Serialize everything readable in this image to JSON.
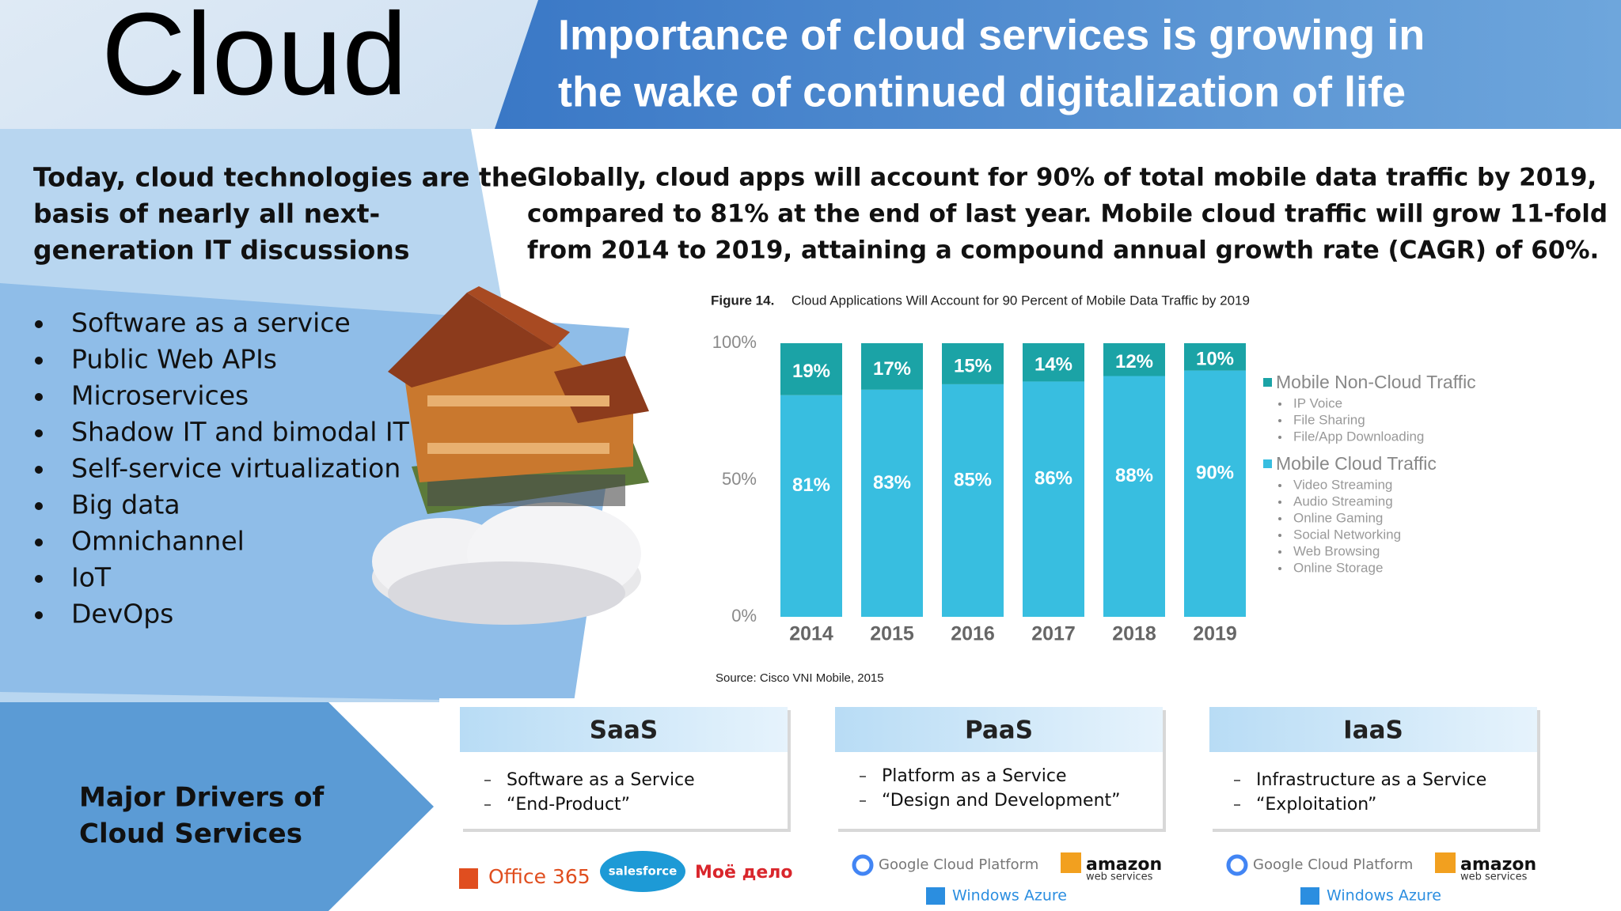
{
  "header": {
    "title": "Cloud",
    "headline": [
      "Importance of cloud services is growing in",
      "the wake of continued digitalization of life"
    ]
  },
  "intro": [
    "Today, cloud technologies are the",
    "basis of nearly all next-",
    "generation IT discussions"
  ],
  "drivers_list": [
    "Software as a service",
    "Public Web APIs",
    "Microservices",
    "Shadow IT and bimodal IT",
    "Self-service virtualization",
    "Big data",
    "Omnichannel",
    "IoT",
    "DevOps"
  ],
  "drivers_title": [
    "Major Drivers of",
    "Cloud Services"
  ],
  "summary": [
    "Globally, cloud apps will account for 90% of total mobile data traffic by 2019,",
    "compared to 81% at the end of last year. Mobile cloud traffic will grow 11-fold",
    "from 2014 to 2019, attaining a compound annual growth rate (CAGR) of 60%."
  ],
  "figure": {
    "label": "Figure 14.",
    "caption": "Cloud Applications Will Account for 90 Percent of Mobile Data Traffic by 2019",
    "source": "Source: Cisco VNI Mobile, 2015"
  },
  "chart_data": {
    "type": "bar",
    "stacked": true,
    "categories": [
      "2014",
      "2015",
      "2016",
      "2017",
      "2018",
      "2019"
    ],
    "series": [
      {
        "name": "Mobile Non-Cloud Traffic",
        "color": "#1ba3a6",
        "values": [
          19,
          17,
          15,
          14,
          12,
          10
        ],
        "value_labels": [
          "19%",
          "17%",
          "15%",
          "14%",
          "12%",
          "10%"
        ],
        "items": [
          "IP Voice",
          "File Sharing",
          "File/App Downloading"
        ]
      },
      {
        "name": "Mobile Cloud Traffic",
        "color": "#38bee0",
        "values": [
          81,
          83,
          85,
          86,
          88,
          90
        ],
        "value_labels": [
          "81%",
          "83%",
          "85%",
          "86%",
          "88%",
          "90%"
        ],
        "items": [
          "Video Streaming",
          "Audio Streaming",
          "Online Gaming",
          "Social Networking",
          "Web Browsing",
          "Online Storage"
        ]
      }
    ],
    "ylim": [
      0,
      100
    ],
    "yticks": [
      {
        "value": 0,
        "label": "0%"
      },
      {
        "value": 50,
        "label": "50%"
      },
      {
        "value": 100,
        "label": "100%"
      }
    ]
  },
  "services": [
    {
      "title": "SaaS",
      "lines": [
        "Software as a Service",
        "“End-Product”"
      ],
      "logos": [
        "Office 365",
        "salesforce",
        "Моё дело"
      ]
    },
    {
      "title": "PaaS",
      "lines": [
        "Platform as a Service",
        "“Design and Development”"
      ],
      "logos": [
        "Google Cloud Platform",
        "amazon",
        "web services",
        "Windows Azure"
      ]
    },
    {
      "title": "IaaS",
      "lines": [
        "Infrastructure as a Service",
        "“Exploitation”"
      ],
      "logos": [
        "Google Cloud Platform",
        "amazon",
        "web services",
        "Windows Azure"
      ]
    }
  ]
}
